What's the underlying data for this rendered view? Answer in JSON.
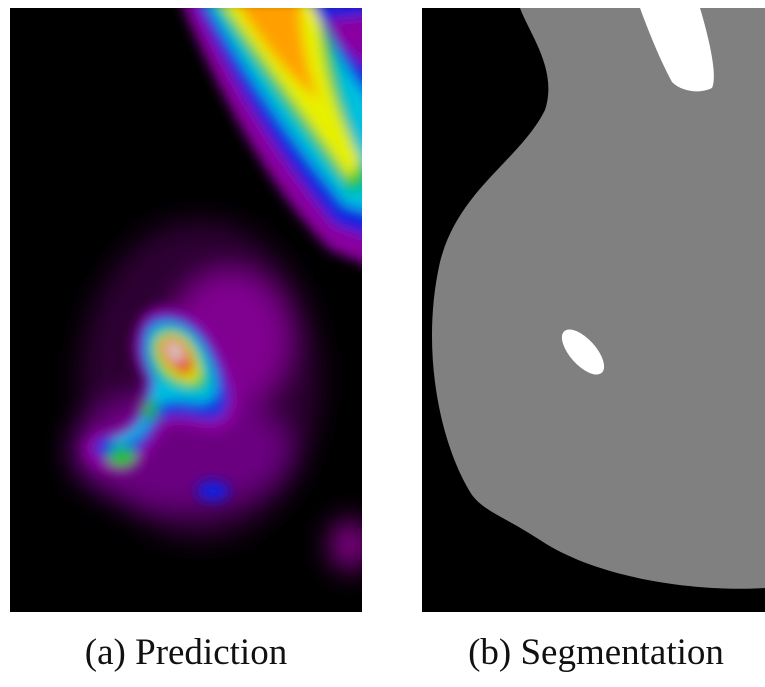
{
  "figure": {
    "panels": [
      {
        "caption": "(a) Prediction"
      },
      {
        "caption": "(b) Segmentation"
      }
    ]
  }
}
